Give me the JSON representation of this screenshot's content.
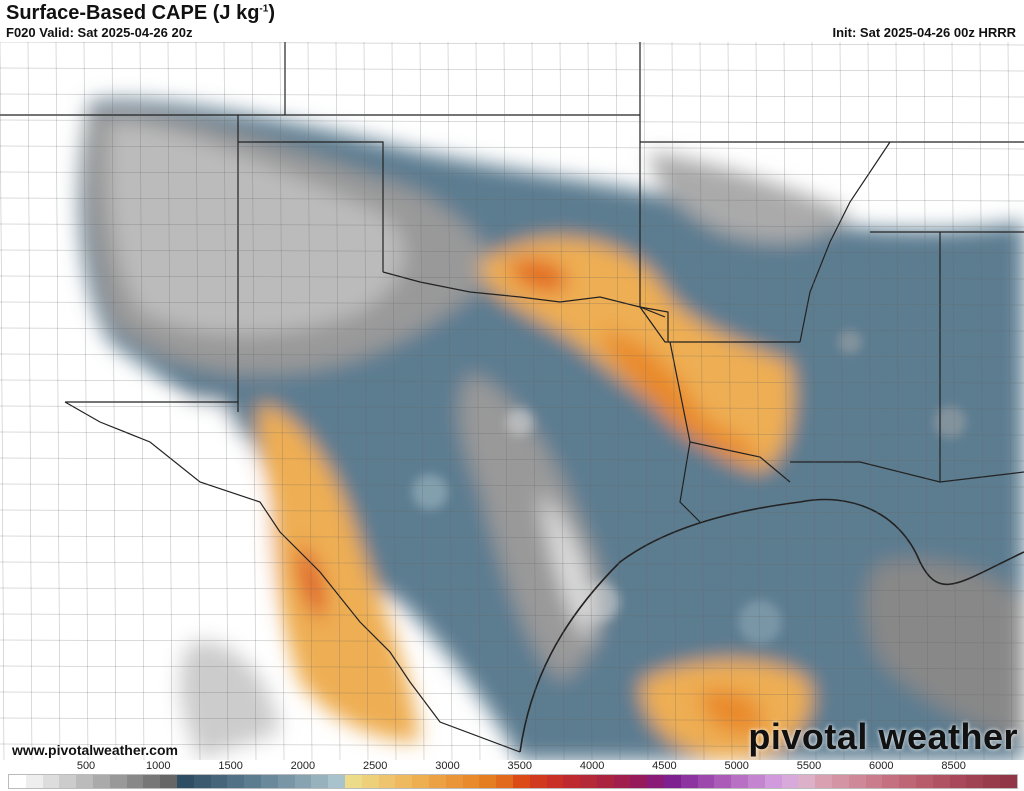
{
  "header": {
    "title": "Surface-Based CAPE (J kg",
    "title_sup": "-1",
    "title_end": ")",
    "valid": "F020 Valid: Sat 2025-04-26 20z",
    "init": "Init: Sat 2025-04-26 00z HRRR"
  },
  "footer": {
    "site": "www.pivotalweather.com",
    "logo": "pivotal weather"
  },
  "colorbar": {
    "labels": [
      "500",
      "1000",
      "1500",
      "2000",
      "2500",
      "3000",
      "3500",
      "4000",
      "4500",
      "5000",
      "5500",
      "6000",
      "8500"
    ],
    "colors": [
      "#ffffff",
      "#eeeeee",
      "#dddddd",
      "#cccccc",
      "#bbbbbb",
      "#aaaaaa",
      "#999999",
      "#888888",
      "#777777",
      "#666666",
      "#2f4d63",
      "#3b5a70",
      "#46657b",
      "#517186",
      "#5c7c90",
      "#6a8a9c",
      "#7896a6",
      "#87a3b1",
      "#97b1bd",
      "#a8c3cc",
      "#ecdc8a",
      "#efd07a",
      "#eec56e",
      "#efb95f",
      "#eeae52",
      "#eca244",
      "#ea9638",
      "#e98a2c",
      "#e57d22",
      "#e26a1c",
      "#dc4a18",
      "#d23a20",
      "#c83028",
      "#be2a30",
      "#b52838",
      "#aa2440",
      "#a01f4c",
      "#951b5a",
      "#8a1c78",
      "#7f2090",
      "#8e34a0",
      "#9c48ac",
      "#aa5cb8",
      "#b870c4",
      "#c484d0",
      "#d09adc",
      "#d8aadb",
      "#dcb0c8",
      "#d8a0b0",
      "#d494a4",
      "#cf8898",
      "#ca7c8c",
      "#c47080",
      "#be6676",
      "#b85c6c",
      "#b05262",
      "#a8485a",
      "#a04252",
      "#983c4c",
      "#903646"
    ],
    "range": [
      0,
      9000
    ]
  },
  "map": {
    "region": "Southern Plains / Texas",
    "field": "Surface-Based CAPE"
  }
}
